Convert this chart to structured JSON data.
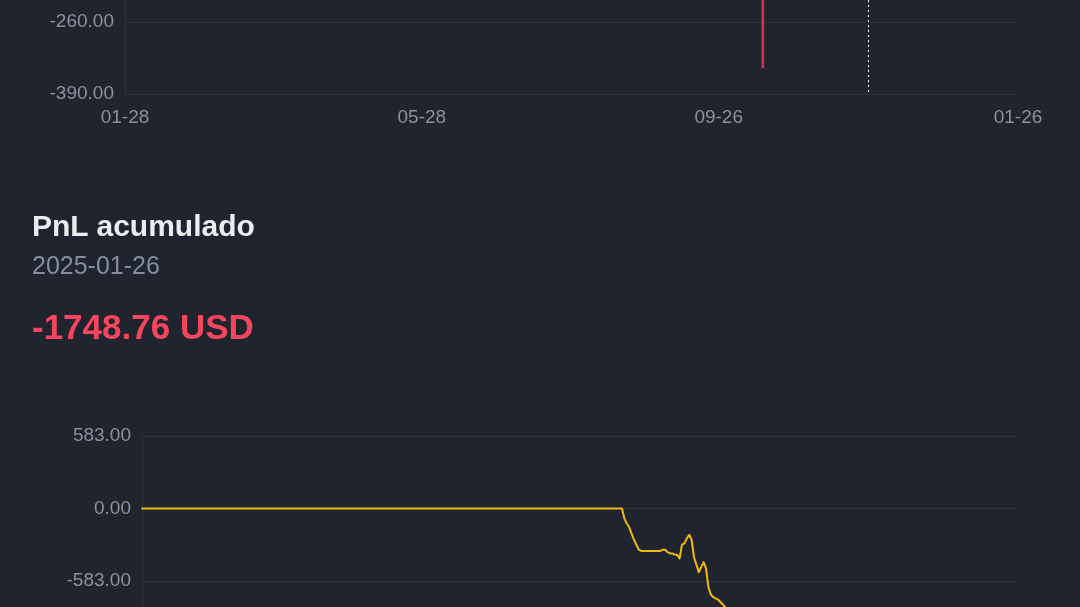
{
  "chart_data": [
    {
      "type": "bar",
      "x": [
        "2024-10-14"
      ],
      "values": [
        -343
      ],
      "color": "#c8364f",
      "xlim": [
        "2024-01-28",
        "2025-01-26"
      ],
      "xticks": [
        {
          "value": "2024-01-28",
          "label": "01-28"
        },
        {
          "value": "2024-05-28",
          "label": "05-28"
        },
        {
          "value": "2024-09-26",
          "label": "09-26"
        },
        {
          "value": "2025-01-26",
          "label": "01-26"
        }
      ],
      "ylim": [
        -390,
        -220
      ],
      "yticks": [
        {
          "value": -390,
          "label": "-390.00"
        },
        {
          "value": -260,
          "label": "-260.00"
        }
      ],
      "grid": "y",
      "ref_lines": [
        {
          "axis": "x",
          "value": "2024-11-26",
          "color": "#ffffff",
          "line_style": "dotted"
        }
      ]
    },
    {
      "type": "line",
      "title": "PnL acumulado",
      "subtitle": "2025-01-26",
      "annotations": [
        "-1748.76 USD"
      ],
      "categories": [
        null,
        null,
        null,
        null,
        null,
        null,
        null,
        null,
        null,
        null,
        null,
        null,
        null,
        null,
        null,
        null,
        null,
        null,
        null,
        null,
        null,
        null,
        null,
        null,
        null,
        null,
        null,
        null,
        null,
        null,
        null,
        null,
        null,
        null,
        null,
        null,
        null,
        null,
        null,
        null,
        null,
        null,
        null,
        null,
        null,
        null,
        null,
        null,
        null,
        null,
        null,
        null,
        null,
        null,
        null,
        null,
        null,
        null,
        null,
        null,
        null,
        null,
        null,
        null,
        null,
        null,
        null,
        null,
        null,
        null,
        null,
        null,
        null,
        null,
        null,
        null,
        null,
        null,
        null,
        null,
        null,
        null,
        null,
        null,
        null,
        null,
        null,
        null,
        null,
        null,
        null,
        null,
        null,
        null,
        null,
        null,
        null,
        null,
        null,
        null,
        null,
        null,
        null,
        null,
        null,
        null,
        null,
        null,
        null,
        null,
        null,
        null,
        null,
        null,
        null,
        null,
        null,
        null,
        null,
        null,
        null,
        null,
        null,
        null,
        null,
        null,
        null,
        null,
        null,
        null,
        null,
        null,
        null,
        null,
        null,
        null,
        null,
        null,
        null,
        null,
        null,
        null,
        null,
        null,
        null,
        null,
        null,
        null,
        null,
        null,
        null,
        null,
        null,
        null,
        null,
        null,
        null,
        null,
        null,
        null,
        null,
        null,
        null,
        null,
        null,
        null,
        null,
        null,
        null,
        null,
        null,
        null,
        null,
        null,
        null,
        null,
        null,
        null,
        null,
        null,
        null,
        null,
        null,
        null,
        null,
        null,
        null,
        null,
        null,
        null,
        null,
        null,
        null,
        null,
        null,
        null,
        null,
        null,
        null,
        null,
        null,
        null,
        null,
        null,
        null,
        null,
        null,
        null,
        null,
        null,
        null,
        null,
        null,
        null,
        null,
        null,
        null,
        null,
        null,
        null,
        null,
        null,
        null,
        null,
        null,
        null,
        null,
        null,
        null,
        null,
        null,
        null,
        null,
        null,
        null,
        null,
        null,
        null,
        null,
        null,
        null,
        null,
        null,
        null,
        null,
        null,
        null,
        null,
        null,
        null,
        null,
        null,
        null,
        null,
        null,
        null,
        null,
        null,
        null,
        null,
        null,
        null,
        null,
        null,
        null,
        null,
        null,
        null,
        null,
        null,
        null,
        null,
        null,
        null,
        null,
        null,
        null,
        null,
        null,
        null,
        null,
        null,
        null,
        null,
        null,
        null,
        null,
        null,
        null,
        null,
        null,
        null,
        null,
        null,
        null,
        null,
        null,
        null,
        null,
        null,
        null,
        null,
        null,
        null,
        null,
        null,
        null,
        null,
        null,
        null,
        null,
        null,
        null,
        null,
        null,
        null,
        null,
        null,
        null,
        null,
        null,
        null,
        null,
        null,
        null,
        null,
        null,
        null,
        null,
        null,
        null,
        null,
        null,
        null,
        null,
        null,
        null,
        null,
        null,
        null,
        null,
        null,
        null,
        null,
        null,
        null,
        null,
        null,
        null,
        null,
        null,
        null,
        null,
        null,
        null,
        null,
        null,
        null,
        null,
        null,
        null,
        null,
        null,
        null,
        null,
        null
      ],
      "values": [
        0,
        0,
        0,
        0,
        0,
        0,
        0,
        0,
        0,
        0,
        0,
        0,
        0,
        0,
        0,
        0,
        0,
        0,
        0,
        0,
        0,
        0,
        0,
        0,
        0,
        0,
        0,
        0,
        0,
        0,
        0,
        0,
        0,
        0,
        0,
        0,
        0,
        0,
        0,
        0,
        0,
        0,
        0,
        0,
        0,
        0,
        0,
        0,
        0,
        0,
        0,
        0,
        0,
        0,
        0,
        0,
        0,
        0,
        0,
        0,
        0,
        0,
        0,
        0,
        0,
        0,
        0,
        0,
        0,
        0,
        0,
        0,
        0,
        0,
        0,
        0,
        0,
        0,
        0,
        0,
        0,
        0,
        0,
        0,
        0,
        0,
        0,
        0,
        0,
        0,
        0,
        0,
        0,
        0,
        0,
        0,
        0,
        0,
        0,
        0,
        0,
        0,
        0,
        0,
        0,
        0,
        0,
        0,
        0,
        0,
        0,
        0,
        0,
        0,
        0,
        0,
        0,
        0,
        0,
        0,
        0,
        0,
        0,
        0,
        0,
        0,
        0,
        0,
        0,
        0,
        0,
        0,
        0,
        0,
        0,
        0,
        0,
        0,
        0,
        0,
        0,
        0,
        0,
        0,
        0,
        0,
        0,
        0,
        0,
        0,
        0,
        0,
        0,
        0,
        0,
        0,
        0,
        0,
        0,
        0,
        0,
        0,
        0,
        0,
        0,
        0,
        0,
        0,
        0,
        0,
        0,
        0,
        0,
        0,
        0,
        0,
        0,
        0,
        0,
        0,
        0,
        0,
        0,
        0,
        0,
        0,
        0,
        0,
        0,
        0,
        0,
        0,
        0,
        0,
        0,
        0,
        0,
        0,
        0,
        0,
        0,
        -80,
        -120,
        -150,
        -200,
        -250,
        -290,
        -330,
        -340,
        -340,
        -340,
        -340,
        -340,
        -340,
        -340,
        -340,
        -340,
        -330,
        -330,
        -350,
        -360,
        -360,
        -370,
        -370,
        -400,
        -290,
        -280,
        -240,
        -210,
        -250,
        -390,
        -450,
        -510,
        -470,
        -430,
        -480,
        -630,
        -690,
        -710,
        -720,
        -730,
        -750,
        -770,
        -790,
        null,
        null,
        null,
        null,
        null,
        null,
        null,
        null,
        null,
        null,
        null,
        null,
        null,
        null,
        null,
        null,
        null,
        null,
        null,
        null,
        null,
        null,
        null,
        null,
        null,
        null,
        null,
        null,
        null,
        null,
        null,
        null,
        null,
        null,
        null,
        null,
        null,
        null,
        null,
        null,
        null,
        null,
        null,
        null,
        null,
        null,
        null,
        null,
        null,
        null,
        null,
        null,
        null,
        null,
        null,
        null,
        null,
        null,
        null,
        null,
        null,
        null,
        null,
        null,
        null,
        null,
        null,
        null,
        null,
        null,
        null,
        null,
        null,
        null,
        null,
        null,
        null,
        null,
        null,
        null,
        null,
        null,
        null,
        null,
        null,
        null,
        null,
        null,
        null,
        null,
        null,
        null,
        null,
        null,
        null,
        null,
        null,
        null,
        null,
        null,
        null,
        null,
        null,
        null,
        null,
        null,
        null,
        null,
        null,
        null,
        null,
        null,
        null,
        null,
        null,
        null,
        null,
        null,
        null,
        null,
        null,
        null
      ],
      "color": "#f0b90b",
      "ylim": [
        -790,
        583
      ],
      "yticks": [
        {
          "value": -583,
          "label": "-583.00"
        },
        {
          "value": 0,
          "label": "0.00"
        },
        {
          "value": 583,
          "label": "583.00"
        }
      ],
      "grid": "y",
      "tick_labels": "y"
    }
  ]
}
